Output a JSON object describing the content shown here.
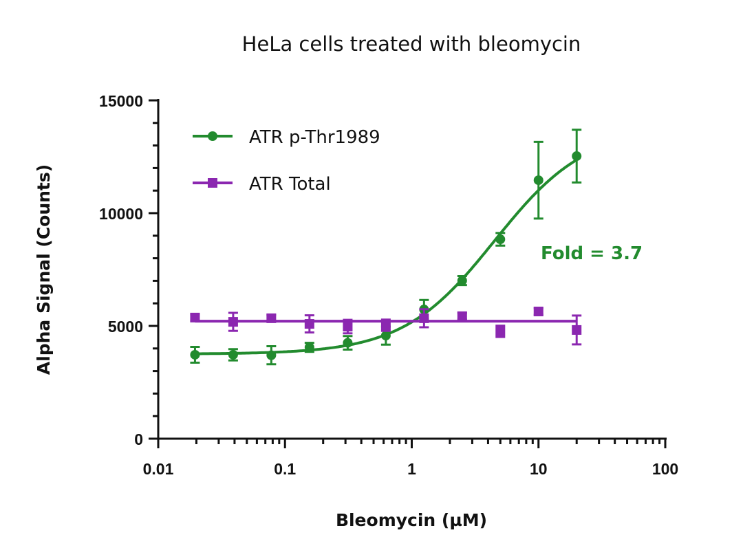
{
  "chart_data": {
    "type": "scatter",
    "title": "HeLa cells treated with bleomycin",
    "xlabel": "Bleomycin (µM)",
    "ylabel": "Alpha Signal (Counts)",
    "xscale": "log",
    "xlim": [
      0.01,
      100
    ],
    "ylim": [
      0,
      15000
    ],
    "xticks": [
      "0.01",
      "0.1",
      "1",
      "10",
      "100"
    ],
    "yticks": [
      "0",
      "5000",
      "10000",
      "15000"
    ],
    "grid": false,
    "legend_position": "top-left",
    "x": [
      0.0195,
      0.039,
      0.078,
      0.156,
      0.3125,
      0.625,
      1.25,
      2.5,
      5,
      10,
      20
    ],
    "series": [
      {
        "name": "ATR p-Thr1989",
        "color": "#228B2E",
        "marker": "circle",
        "fit": "sigmoidal",
        "values": [
          3720,
          3720,
          3700,
          4050,
          4250,
          4570,
          5730,
          7010,
          8840,
          11460,
          12530
        ],
        "error": [
          350,
          250,
          400,
          200,
          300,
          400,
          420,
          200,
          280,
          1700,
          1170
        ]
      },
      {
        "name": "ATR Total",
        "color": "#8B27B0",
        "marker": "square",
        "fit": "flat",
        "fit_value": 5210,
        "values": [
          5370,
          5180,
          5340,
          5090,
          4970,
          5030,
          5340,
          5430,
          4760,
          5640,
          4820
        ],
        "error": [
          150,
          400,
          150,
          380,
          300,
          250,
          400,
          150,
          250,
          150,
          640
        ]
      }
    ],
    "annotations": [
      {
        "text": "Fold = 3.7",
        "color": "#228B2E"
      }
    ]
  }
}
